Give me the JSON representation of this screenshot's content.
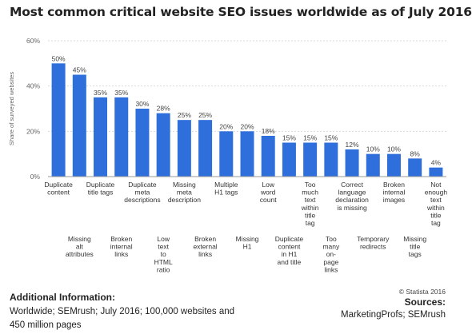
{
  "title": "Most common critical website SEO issues worldwide as of July 2016",
  "footer": {
    "info_heading": "Additional Information:",
    "info_text": "Worldwide; SEMrush; July 2016; 100,000 websites and 450 million pages",
    "copyright": "© Statista 2016",
    "sources_heading": "Sources:",
    "sources_text": "MarketingProfs; SEMrush"
  },
  "colors": {
    "bar": "#2f6fdc",
    "grid": "#d9d9d9",
    "axis": "#999999"
  },
  "chart_data": {
    "type": "bar",
    "ylabel": "Share of surveyed websites",
    "ylim": [
      0,
      60
    ],
    "yticks": [
      "0%",
      "20%",
      "40%",
      "60%"
    ],
    "yticks_values": [
      0,
      20,
      40,
      60
    ],
    "grid": true,
    "categories": [
      [
        "Duplicate",
        "content"
      ],
      [
        "Missing",
        "alt",
        "attributes"
      ],
      [
        "Duplicate",
        "title tags"
      ],
      [
        "Broken",
        "internal",
        "links"
      ],
      [
        "Duplicate",
        "meta",
        "descriptions"
      ],
      [
        "Low",
        "text",
        "to",
        "HTML",
        "ratio"
      ],
      [
        "Missing",
        "meta",
        "description"
      ],
      [
        "Broken",
        "external",
        "links"
      ],
      [
        "Multiple",
        "H1 tags"
      ],
      [
        "Missing",
        "H1"
      ],
      [
        "Low",
        "word",
        "count"
      ],
      [
        "Duplicate",
        "content",
        "in H1",
        "and title"
      ],
      [
        "Too",
        "much",
        "text",
        "within",
        "title",
        "tag"
      ],
      [
        "Too",
        "many",
        "on-",
        "page",
        "links"
      ],
      [
        "Correct",
        "language",
        "declaration",
        "is missing"
      ],
      [
        "Temporary",
        "redirects"
      ],
      [
        "Broken",
        "internal",
        "images"
      ],
      [
        "Missing",
        "title",
        "tags"
      ],
      [
        "Not",
        "enough",
        "text",
        "within",
        "title",
        "tag"
      ]
    ],
    "values": [
      50,
      45,
      35,
      35,
      30,
      28,
      25,
      25,
      20,
      20,
      18,
      15,
      15,
      15,
      12,
      10,
      10,
      8,
      4
    ],
    "value_labels": [
      "50%",
      "45%",
      "35%",
      "35%",
      "30%",
      "28%",
      "25%",
      "25%",
      "20%",
      "20%",
      "18%",
      "15%",
      "15%",
      "15%",
      "12%",
      "10%",
      "10%",
      "8%",
      "4%"
    ]
  }
}
